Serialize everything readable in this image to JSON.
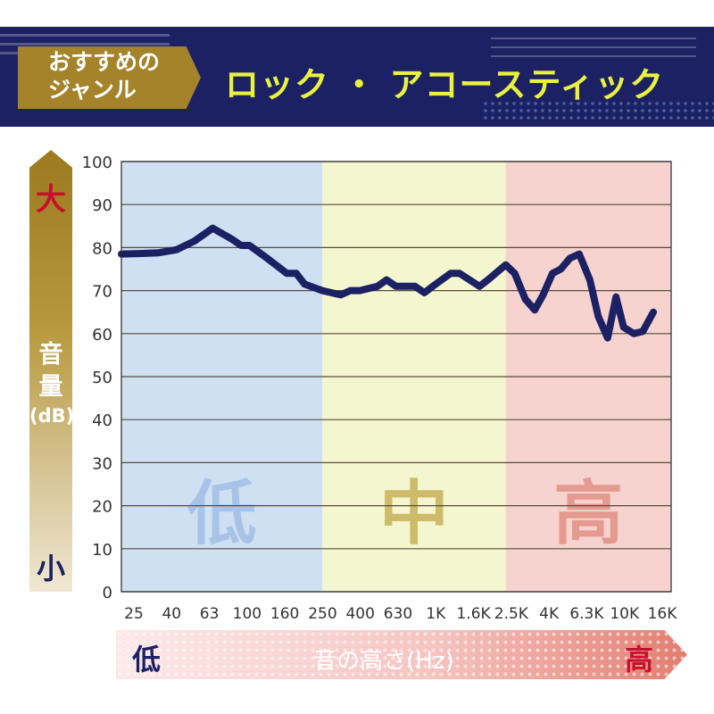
{
  "header": {
    "genre_label": "おすすめの\nジャンル",
    "title": "ロック ・ アコースティック"
  },
  "y_axis": {
    "top_label": "大",
    "label": "音\n量",
    "unit": "(dB)",
    "bottom_label": "小"
  },
  "x_axis": {
    "low_label": "低",
    "label": "音の高さ(Hz)",
    "high_label": "高"
  },
  "colors": {
    "line": "#1c2164",
    "low_band": "#cfe0f2",
    "mid_band": "#f4f6cf",
    "high_band": "#f6d3cf",
    "low_text": "#a9c3e6",
    "mid_text": "#cdbb6a",
    "high_text": "#e49a8f"
  },
  "chart_data": {
    "type": "line",
    "title": "ロック ・ アコースティック",
    "xlabel": "音の高さ(Hz)",
    "ylabel": "音量(dB)",
    "ylim": [
      0,
      100
    ],
    "yticks": [
      0,
      10,
      20,
      30,
      40,
      50,
      60,
      70,
      80,
      90,
      100
    ],
    "grid": true,
    "x_ticks": [
      "25",
      "40",
      "63",
      "100",
      "160",
      "250",
      "400",
      "630",
      "1K",
      "1.6K",
      "2.5K",
      "4K",
      "6.3K",
      "10K",
      "16K"
    ],
    "bands": [
      {
        "label": "低",
        "from": 20,
        "to": 250
      },
      {
        "label": "中",
        "from": 250,
        "to": 2500
      },
      {
        "label": "高",
        "from": 2500,
        "to": 20000
      }
    ],
    "series": [
      {
        "points": [
          [
            20,
            78.5
          ],
          [
            25,
            78.6
          ],
          [
            32,
            78.8
          ],
          [
            40,
            79.5
          ],
          [
            50,
            81.5
          ],
          [
            63,
            84.5
          ],
          [
            80,
            82
          ],
          [
            90,
            80.5
          ],
          [
            100,
            80.5
          ],
          [
            125,
            77.5
          ],
          [
            160,
            74
          ],
          [
            180,
            74
          ],
          [
            200,
            71.5
          ],
          [
            250,
            70
          ],
          [
            315,
            69
          ],
          [
            355,
            70
          ],
          [
            400,
            70
          ],
          [
            500,
            71
          ],
          [
            560,
            72.5
          ],
          [
            630,
            71
          ],
          [
            800,
            71
          ],
          [
            900,
            69.5
          ],
          [
            1000,
            71
          ],
          [
            1250,
            74
          ],
          [
            1400,
            74
          ],
          [
            1800,
            71
          ],
          [
            2000,
            72.5
          ],
          [
            2500,
            76
          ],
          [
            2800,
            74
          ],
          [
            3200,
            68
          ],
          [
            3600,
            65.5
          ],
          [
            4000,
            69
          ],
          [
            4500,
            74
          ],
          [
            5000,
            75
          ],
          [
            5600,
            77.5
          ],
          [
            6300,
            78.5
          ],
          [
            7200,
            72.5
          ],
          [
            8000,
            64
          ],
          [
            9000,
            59
          ],
          [
            10000,
            68.5
          ],
          [
            11000,
            61.5
          ],
          [
            12500,
            60
          ],
          [
            14000,
            60.5
          ],
          [
            16000,
            65
          ]
        ]
      }
    ]
  }
}
